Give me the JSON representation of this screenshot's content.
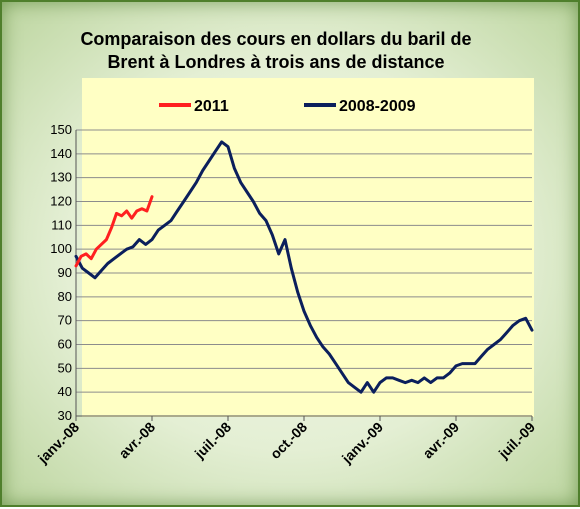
{
  "chart_data": {
    "type": "line",
    "title_lines": [
      "Comparaison des cours en dollars du baril de",
      "Brent à Londres à trois ans de distance"
    ],
    "ylim": [
      30,
      150
    ],
    "yticks": [
      30,
      40,
      50,
      60,
      70,
      80,
      90,
      100,
      110,
      120,
      130,
      140,
      150
    ],
    "x_tick_labels": [
      "janv.-08",
      "avr.-08",
      "juil.-08",
      "oct.-08",
      "janv.-09",
      "avr.-09",
      "juil.-09"
    ],
    "x_range_months": [
      0,
      18
    ],
    "grid": "horizontal",
    "legend_position": "top",
    "series": [
      {
        "name": "2011",
        "color": "#ff2020",
        "x": [
          0,
          0.2,
          0.4,
          0.6,
          0.8,
          1.0,
          1.2,
          1.4,
          1.6,
          1.8,
          2.0,
          2.2,
          2.4,
          2.6,
          2.8,
          3.0
        ],
        "y": [
          93,
          97,
          98,
          96,
          100,
          102,
          104,
          109,
          115,
          114,
          116,
          113,
          116,
          117,
          116,
          122
        ]
      },
      {
        "name": "2008-2009",
        "color": "#0b1f5c",
        "x": [
          0,
          0.25,
          0.5,
          0.75,
          1.0,
          1.25,
          1.5,
          1.75,
          2.0,
          2.25,
          2.5,
          2.75,
          3.0,
          3.25,
          3.5,
          3.75,
          4.0,
          4.25,
          4.5,
          4.75,
          5.0,
          5.25,
          5.5,
          5.75,
          6.0,
          6.25,
          6.5,
          6.75,
          7.0,
          7.25,
          7.5,
          7.75,
          8.0,
          8.25,
          8.5,
          8.75,
          9.0,
          9.25,
          9.5,
          9.75,
          10.0,
          10.25,
          10.5,
          10.75,
          11.0,
          11.25,
          11.5,
          11.75,
          12.0,
          12.25,
          12.5,
          12.75,
          13.0,
          13.25,
          13.5,
          13.75,
          14.0,
          14.25,
          14.5,
          14.75,
          15.0,
          15.25,
          15.5,
          15.75,
          16.0,
          16.25,
          16.5,
          16.75,
          17.0,
          17.25,
          17.5,
          17.75,
          18.0
        ],
        "y": [
          97,
          92,
          90,
          88,
          91,
          94,
          96,
          98,
          100,
          101,
          104,
          102,
          104,
          108,
          110,
          112,
          116,
          120,
          124,
          128,
          133,
          137,
          141,
          145,
          143,
          134,
          128,
          124,
          120,
          115,
          112,
          106,
          98,
          104,
          92,
          82,
          74,
          68,
          63,
          59,
          56,
          52,
          48,
          44,
          42,
          40,
          44,
          40,
          44,
          46,
          46,
          45,
          44,
          45,
          44,
          46,
          44,
          46,
          46,
          48,
          51,
          52,
          52,
          52,
          55,
          58,
          60,
          62,
          65,
          68,
          70,
          71,
          66
        ]
      }
    ]
  }
}
